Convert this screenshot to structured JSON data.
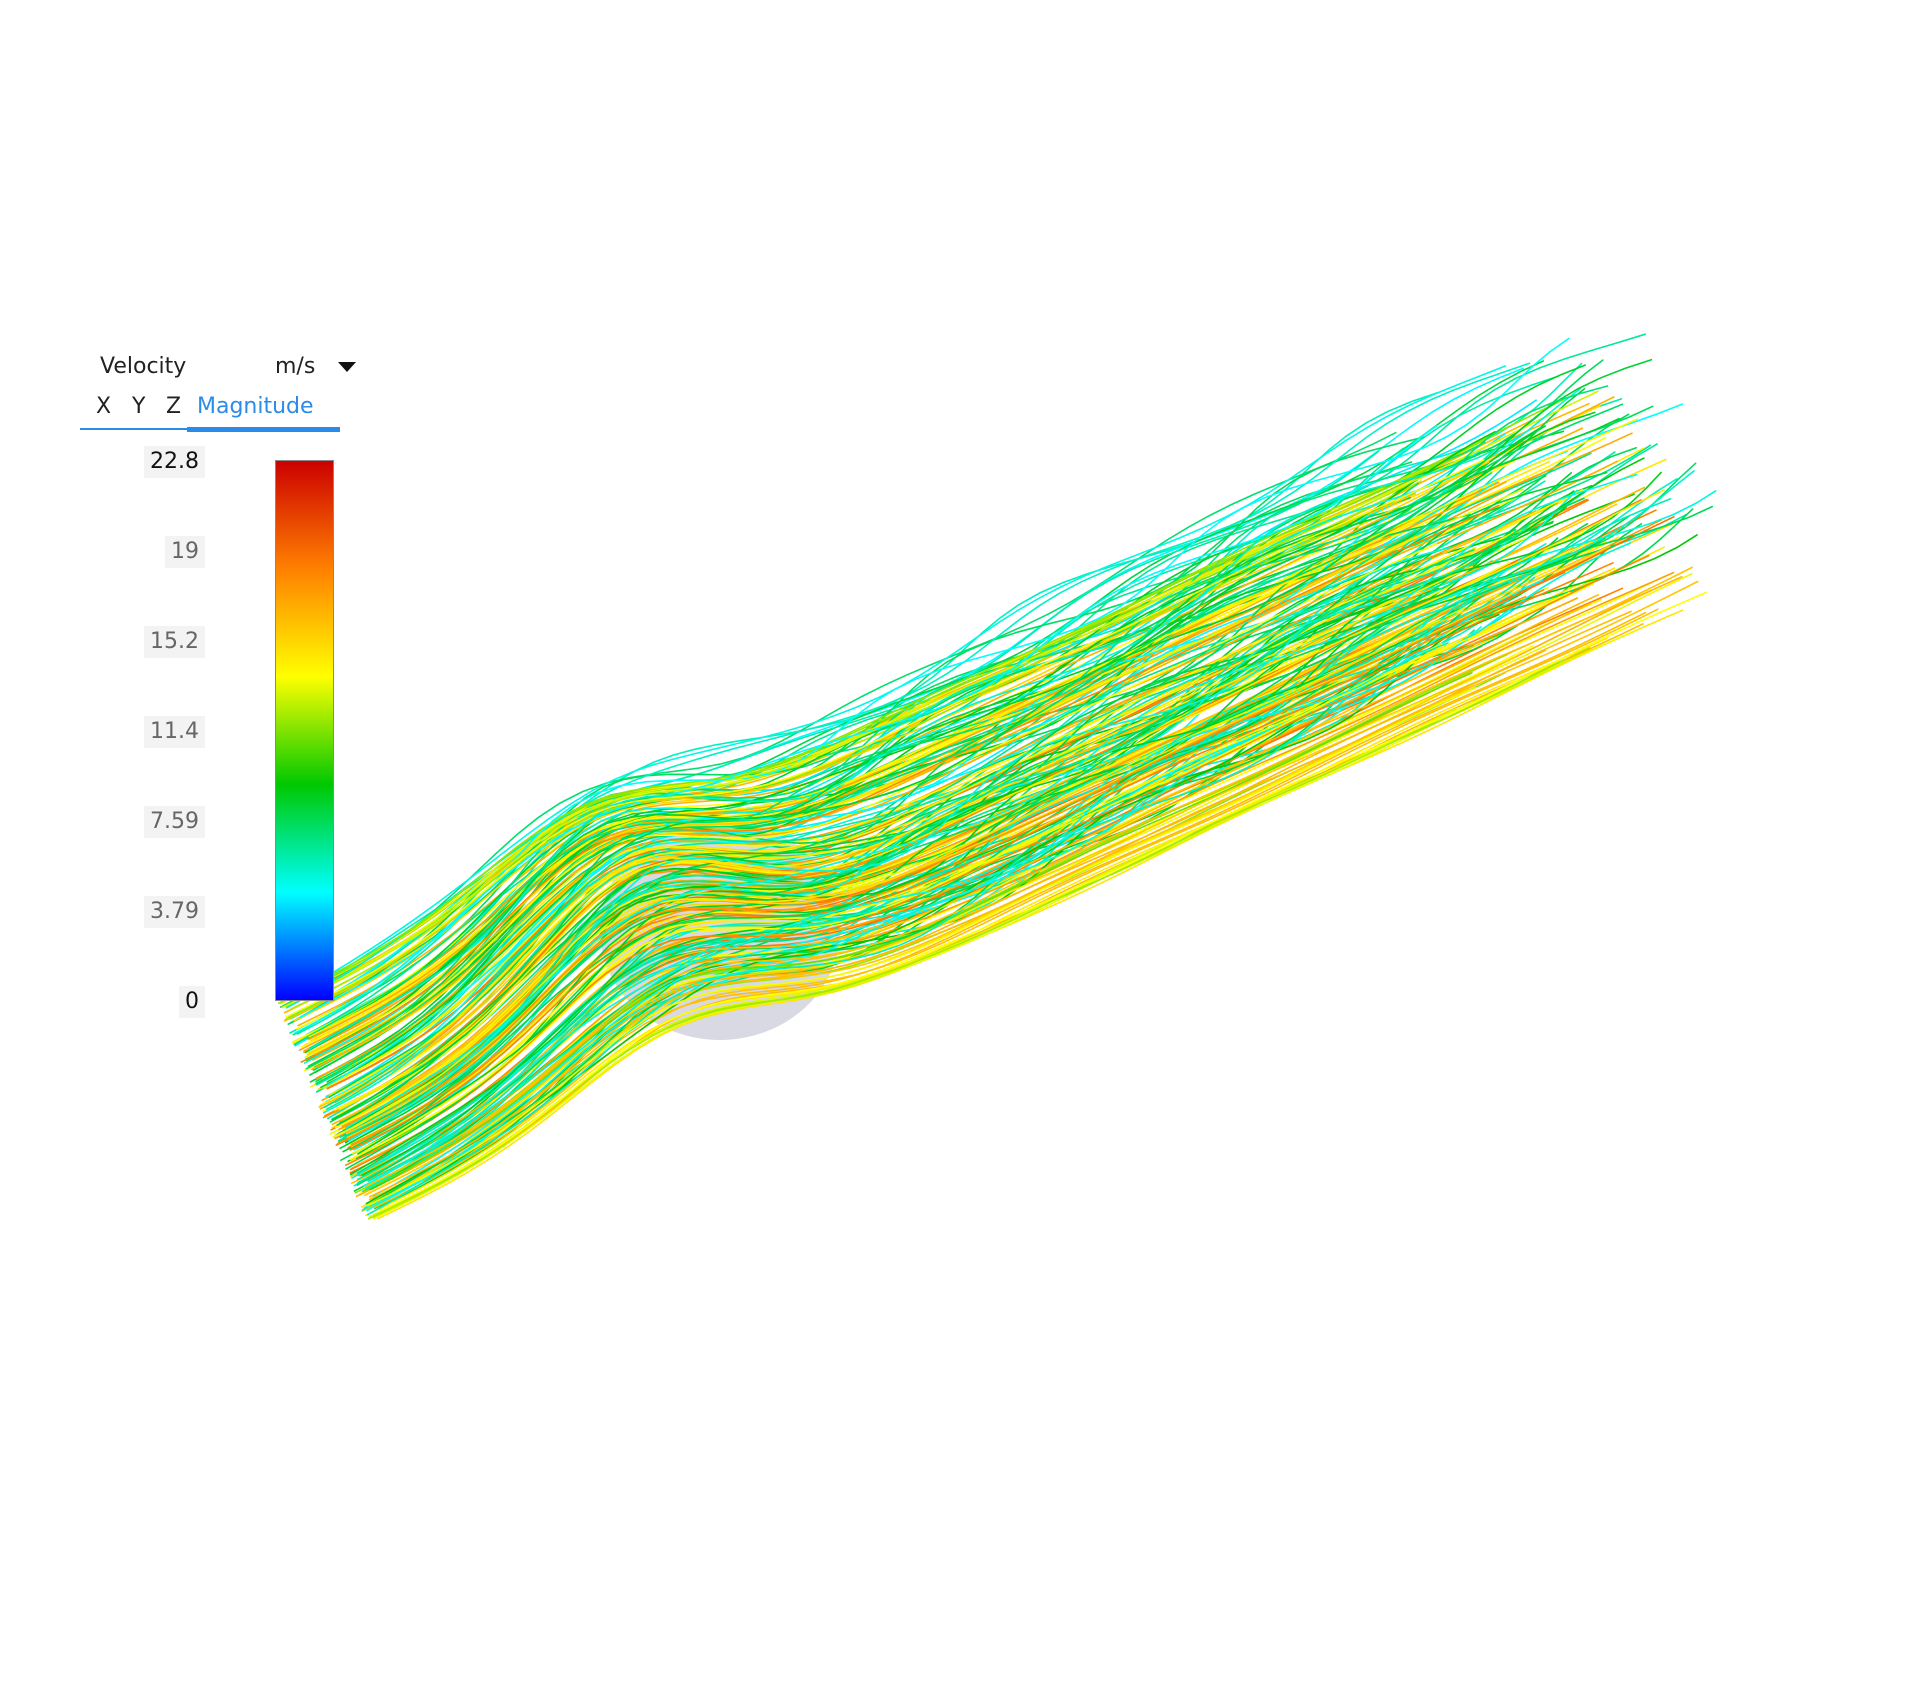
{
  "legend": {
    "quantity": "Velocity",
    "unit": "m/s",
    "tabs": [
      "X",
      "Y",
      "Z",
      "Magnitude"
    ],
    "active_tab": "Magnitude",
    "ticks": [
      "22.8",
      "19",
      "15.2",
      "11.4",
      "7.59",
      "3.79",
      "0"
    ],
    "colormap": [
      "#0000ff",
      "#00ffff",
      "#00c800",
      "#ffff00",
      "#ff8000",
      "#cc0000"
    ]
  },
  "colors": {
    "accent": "#2b8be8"
  }
}
